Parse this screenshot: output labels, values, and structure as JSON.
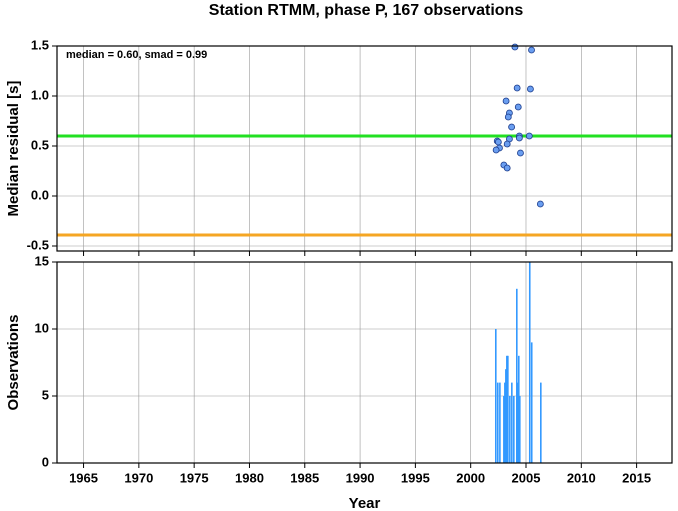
{
  "title": "Station RTMM, phase P, 167 observations",
  "chart_data": [
    {
      "type": "scatter",
      "ylabel": "Median residual [s]",
      "annotation": "median = 0.60, smad = 0.99",
      "color": "#6a9ef0",
      "x": [
        2004.0,
        2005.5,
        2004.2,
        2005.4,
        2003.2,
        2004.3,
        2003.5,
        2003.4,
        2003.7,
        2004.4,
        2004.4,
        2005.3,
        2003.5,
        2002.4,
        2002.5,
        2003.3,
        2002.6,
        2002.3,
        2004.5,
        2003.0,
        2003.3,
        2006.3
      ],
      "values": [
        1.49,
        1.46,
        1.08,
        1.07,
        0.95,
        0.89,
        0.83,
        0.79,
        0.69,
        0.6,
        0.58,
        0.6,
        0.57,
        0.55,
        0.54,
        0.52,
        0.48,
        0.46,
        0.43,
        0.31,
        0.28,
        -0.08
      ],
      "hlines": [
        {
          "value": 0.6,
          "color": "#22e022"
        },
        {
          "value": -0.39,
          "color": "#f5a623"
        }
      ],
      "xlim": [
        1962.6,
        2018.2
      ],
      "xticks": [
        1965,
        1970,
        1975,
        1980,
        1985,
        1990,
        1995,
        2000,
        2005,
        2010,
        2015
      ],
      "ylim": [
        -0.55,
        1.5
      ],
      "yticks": [
        1.5,
        {
          "value": 1.0,
          "label": "1.0"
        },
        0.5,
        {
          "value": 0.0,
          "label": "0.0"
        },
        -0.5
      ],
      "grid": true
    },
    {
      "type": "bar",
      "ylabel": "Observations",
      "xlabel": "Year",
      "color": "#3399ff",
      "x": [
        2002.27,
        2002.45,
        2002.64,
        2003.0,
        2003.09,
        2003.18,
        2003.27,
        2003.36,
        2003.54,
        2003.72,
        2003.9,
        2004.17,
        2004.26,
        2004.35,
        2004.44,
        2005.34,
        2005.52,
        2006.34
      ],
      "values": [
        10,
        6,
        6,
        5,
        6,
        7,
        8,
        8,
        5,
        6,
        5,
        13,
        6,
        8,
        5,
        15,
        9,
        6
      ],
      "xlim": [
        1962.6,
        2018.2
      ],
      "xticks": [
        1965,
        1970,
        1975,
        1980,
        1985,
        1990,
        1995,
        2000,
        2005,
        2010,
        2015
      ],
      "ylim": [
        0,
        15
      ],
      "yticks": [
        0,
        5,
        10,
        15
      ],
      "grid": true
    }
  ]
}
